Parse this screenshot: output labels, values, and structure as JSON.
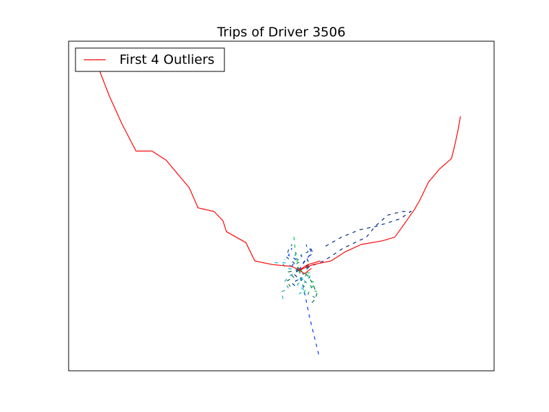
{
  "chart_data": {
    "type": "line",
    "title": "Trips of Driver 3506",
    "xlabel": "",
    "ylabel": "",
    "axis_ticks_visible": false,
    "grid": false,
    "legend": {
      "placement": "top-left",
      "entries": [
        {
          "label": "First 4 Outliers",
          "color": "#ff0000"
        }
      ]
    },
    "xlim": [
      -13000,
      11000
    ],
    "ylim": [
      -5500,
      12500
    ],
    "outlier_color": "#ff0000",
    "outliers": [
      {
        "x": [
          0,
          -400,
          -1500,
          -2500,
          -3000,
          -4100,
          -4300,
          -4800,
          -5700,
          -6200,
          -7500,
          -8300,
          -9200,
          -10000,
          -10700,
          -11300,
          -11800
        ],
        "y": [
          0,
          200,
          300,
          500,
          1500,
          2100,
          2700,
          3200,
          3400,
          4500,
          6000,
          6500,
          6500,
          8000,
          9500,
          11000,
          12000
        ]
      },
      {
        "x": [
          0,
          800,
          1800,
          2600,
          3500,
          4700,
          5400,
          5700,
          6500,
          6800,
          7300,
          7900,
          8600,
          8800,
          9000,
          9100
        ],
        "y": [
          0,
          300,
          500,
          1000,
          1400,
          1600,
          1800,
          2200,
          3300,
          3800,
          4800,
          5500,
          6100,
          6900,
          7800,
          8400
        ]
      },
      {
        "x": [
          0,
          500,
          1200
        ],
        "y": [
          0,
          300,
          500
        ]
      },
      {
        "x": [
          0,
          300,
          700
        ],
        "y": [
          0,
          -200,
          100
        ]
      }
    ],
    "trip_colors": [
      "#002a84",
      "#0032ff",
      "#00b4d8",
      "#00c850",
      "#006440",
      "#004c8c",
      "#1f8f6f",
      "#2aa0c0"
    ],
    "trips": [
      {
        "x": [
          0,
          500,
          1400,
          2500,
          3800,
          4300,
          5000,
          5800,
          6300,
          5700,
          4400,
          3400,
          2400,
          1300
        ],
        "y": [
          0,
          150,
          500,
          1200,
          1800,
          2400,
          3000,
          3200,
          3200,
          2800,
          2400,
          2200,
          1800,
          1200
        ]
      },
      {
        "x": [
          0,
          300,
          600,
          900,
          1100
        ],
        "y": [
          0,
          -1200,
          -2600,
          -3800,
          -4600
        ]
      },
      {
        "x": [
          0,
          -400,
          -800,
          -1400
        ],
        "y": [
          0,
          200,
          400,
          400
        ]
      },
      {
        "x": [
          0,
          -200,
          -300
        ],
        "y": [
          0,
          900,
          1900
        ]
      },
      {
        "x": [
          0,
          500,
          800,
          1000,
          900,
          600
        ],
        "y": [
          0,
          -300,
          -800,
          -1300,
          -1600,
          -1900
        ]
      },
      {
        "x": [
          0,
          -300,
          -700,
          -600,
          -400
        ],
        "y": [
          0,
          400,
          700,
          1100,
          1400
        ]
      },
      {
        "x": [
          0,
          400,
          300,
          700,
          500,
          900
        ],
        "y": [
          0,
          -200,
          -600,
          -900,
          -1300,
          -1500
        ]
      },
      {
        "x": [
          0,
          -500,
          -800,
          -600,
          -1000,
          -900
        ],
        "y": [
          0,
          -300,
          -600,
          -1000,
          -1200,
          -1600
        ]
      },
      {
        "x": [
          0,
          600,
          400,
          800,
          600
        ],
        "y": [
          0,
          300,
          700,
          900,
          1300
        ]
      },
      {
        "x": [
          0,
          -400,
          -200,
          -600,
          -400
        ],
        "y": [
          0,
          200,
          600,
          800,
          1200
        ]
      },
      {
        "x": [
          0,
          200,
          -100,
          300,
          0
        ],
        "y": [
          0,
          -500,
          -800,
          -1100,
          -1300
        ]
      },
      {
        "x": [
          0,
          700,
          500,
          900,
          700,
          1000
        ],
        "y": [
          0,
          -200,
          -500,
          -700,
          -1000,
          -1200
        ]
      },
      {
        "x": [
          0,
          -600,
          -300,
          -700,
          -500
        ],
        "y": [
          0,
          -100,
          -400,
          -600,
          -900
        ]
      },
      {
        "x": [
          0,
          300,
          100,
          500,
          400
        ],
        "y": [
          0,
          500,
          800,
          1000,
          1400
        ]
      },
      {
        "x": [
          0,
          -200,
          100,
          -300,
          -100
        ],
        "y": [
          0,
          300,
          500,
          700,
          1000
        ]
      },
      {
        "x": [
          0,
          500,
          200,
          600,
          300
        ],
        "y": [
          0,
          100,
          -200,
          -400,
          -700
        ]
      },
      {
        "x": [
          0,
          -300,
          0,
          -400,
          -200
        ],
        "y": [
          0,
          -200,
          -500,
          -700,
          -900
        ]
      },
      {
        "x": [
          0,
          400,
          700,
          600
        ],
        "y": [
          0,
          600,
          900,
          1200
        ]
      },
      {
        "x": [
          0,
          -700,
          -900,
          -800
        ],
        "y": [
          0,
          100,
          300,
          600
        ]
      },
      {
        "x": [
          0,
          100,
          400,
          200
        ],
        "y": [
          0,
          -700,
          -1000,
          -1400
        ]
      }
    ]
  }
}
